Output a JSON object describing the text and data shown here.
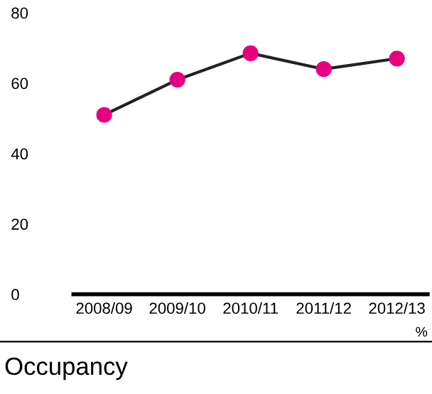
{
  "chart_data": {
    "type": "line",
    "title": "Occupancy",
    "annotations": [
      "%"
    ],
    "categories": [
      "2008/09",
      "2009/10",
      "2010/11",
      "2011/12",
      "2012/13"
    ],
    "series": [
      {
        "color": "#e6007e",
        "values": [
          51,
          61,
          68.5,
          64,
          67
        ]
      }
    ],
    "ylim": [
      0,
      80
    ],
    "yticks": [
      0,
      20,
      40,
      60,
      80
    ],
    "grid": false,
    "legend": false,
    "marker": "circle",
    "line_style": "solid"
  }
}
